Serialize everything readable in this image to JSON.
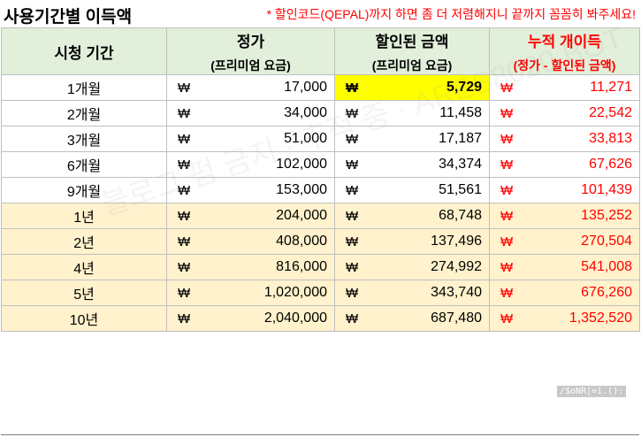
{
  "title": "사용기간별 이득액",
  "note": "* 할인코드(QEPAL)까지 하면 좀 더 저렴해지니 끝까지 꼼꼼히 봐주세요!",
  "headers": {
    "period": "시청 기간",
    "price": "정가",
    "price_sub": "(프리미엄 요금)",
    "discount": "할인된 금액",
    "discount_sub": "(프리미엄 요금)",
    "gain": "누적 개이득",
    "gain_sub": "(정가 - 할인된 금액)"
  },
  "currency": "₩",
  "rows": [
    {
      "period": "1개월",
      "price": "17,000",
      "discount": "5,729",
      "gain": "11,271"
    },
    {
      "period": "2개월",
      "price": "34,000",
      "discount": "11,458",
      "gain": "22,542"
    },
    {
      "period": "3개월",
      "price": "51,000",
      "discount": "17,187",
      "gain": "33,813"
    },
    {
      "period": "6개월",
      "price": "102,000",
      "discount": "34,374",
      "gain": "67,626"
    },
    {
      "period": "9개월",
      "price": "153,000",
      "discount": "51,561",
      "gain": "101,439"
    },
    {
      "period": "1년",
      "price": "204,000",
      "discount": "68,748",
      "gain": "135,252"
    },
    {
      "period": "2년",
      "price": "408,000",
      "discount": "137,496",
      "gain": "270,504"
    },
    {
      "period": "4년",
      "price": "816,000",
      "discount": "274,992",
      "gain": "541,008"
    },
    {
      "period": "5년",
      "price": "1,020,000",
      "discount": "343,740",
      "gain": "676,260"
    },
    {
      "period": "10년",
      "price": "2,040,000",
      "discount": "687,480",
      "gain": "1,352,520"
    }
  ],
  "watermark": "블로그 펌 금지 · 추적 중 · ARES8020 BOT",
  "stamp": "/$oNR|=i.():",
  "colors": {
    "header_bg": "#e2efda",
    "year_row_bg": "#fff2cc",
    "highlight": "#ffff00",
    "gain_text": "#ff0000"
  }
}
